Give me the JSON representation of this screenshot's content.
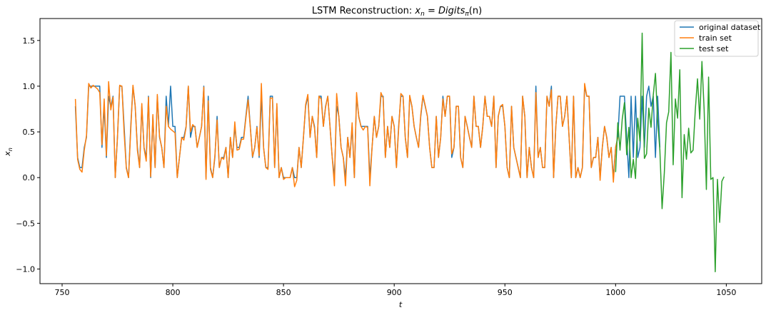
{
  "chart_data": {
    "type": "line",
    "title": {
      "prefix": "LSTM Reconstruction: ",
      "var": "x",
      "sub": "n",
      "eq": " = ",
      "func": "Digits",
      "funcsub": "π",
      "arg": "(n)"
    },
    "xlabel": "t",
    "ylabel": {
      "var": "x",
      "sub": "n"
    },
    "xlim": [
      740,
      1066
    ],
    "ylim": [
      -1.16,
      1.74
    ],
    "xticks": [
      750,
      800,
      850,
      900,
      950,
      1000,
      1050
    ],
    "yticks": [
      -1.0,
      -0.5,
      0.0,
      0.5,
      1.0,
      1.5
    ],
    "ytick_labels": [
      "−1.0",
      "−0.5",
      "0.0",
      "0.5",
      "1.0",
      "1.5"
    ],
    "grid": false,
    "legend_position": "top-right",
    "series": [
      {
        "name": "original dataset",
        "color": "#1f77b4",
        "x_start": 756,
        "y": [
          0.78,
          0.22,
          0.11,
          0.11,
          0.33,
          0.44,
          1.0,
          1.0,
          1.0,
          1.0,
          1.0,
          1.0,
          0.33,
          0.78,
          0.22,
          0.89,
          0.78,
          0.89,
          0.0,
          0.44,
          1.0,
          1.0,
          0.56,
          0.11,
          0.0,
          0.56,
          1.0,
          0.78,
          0.33,
          0.11,
          0.78,
          0.33,
          0.22,
          0.89,
          0.0,
          0.67,
          0.11,
          0.89,
          0.44,
          0.33,
          0.11,
          0.89,
          0.56,
          1.0,
          0.56,
          0.56,
          0.0,
          0.22,
          0.44,
          0.44,
          0.56,
          1.0,
          0.44,
          0.56,
          0.56,
          0.33,
          0.44,
          0.56,
          1.0,
          0.0,
          0.89,
          0.11,
          0.0,
          0.22,
          0.67,
          0.11,
          0.22,
          0.22,
          0.33,
          0.0,
          0.44,
          0.22,
          0.56,
          0.33,
          0.33,
          0.44,
          0.44,
          0.67,
          0.89,
          0.56,
          0.22,
          0.33,
          0.56,
          0.22,
          0.89,
          0.33,
          0.11,
          0.11,
          0.89,
          0.89,
          0.11,
          0.78,
          0.0,
          0.11,
          0.0,
          0.0,
          0.0,
          0.0,
          0.11,
          0.0,
          0.0,
          0.33,
          0.11,
          0.44,
          0.78,
          0.89,
          0.44,
          0.67,
          0.56,
          0.22,
          0.89,
          0.89,
          0.56,
          0.78,
          0.89,
          0.56,
          0.22,
          0.0,
          0.78,
          0.67,
          0.33,
          0.22,
          0.0,
          0.44,
          0.22,
          0.56,
          0.0,
          0.89,
          0.67,
          0.56,
          0.56,
          0.56,
          0.56,
          0.0,
          0.33,
          0.67,
          0.44,
          0.56,
          0.89,
          0.89,
          0.22,
          0.56,
          0.33,
          0.67,
          0.56,
          0.11,
          0.56,
          0.89,
          0.89,
          0.44,
          0.22,
          0.89,
          0.78,
          0.56,
          0.44,
          0.33,
          0.67,
          0.89,
          0.78,
          0.67,
          0.33,
          0.11,
          0.11,
          0.67,
          0.22,
          0.44,
          0.89,
          0.67,
          0.89,
          0.89,
          0.22,
          0.33,
          0.78,
          0.78,
          0.22,
          0.11,
          0.67,
          0.56,
          0.44,
          0.33,
          0.89,
          0.56,
          0.56,
          0.33,
          0.56,
          0.89,
          0.67,
          0.67,
          0.56,
          0.89,
          0.11,
          0.67,
          0.78,
          0.78,
          0.56,
          0.11,
          0.0,
          0.78,
          0.33,
          0.22,
          0.11,
          0.0,
          0.89,
          0.67,
          0.0,
          0.33,
          0.11,
          0.0,
          1.0,
          0.22,
          0.33,
          0.11,
          0.11,
          0.89,
          0.78,
          1.0,
          0.0,
          0.56,
          0.89,
          0.89,
          0.56,
          0.67,
          0.89,
          0.44,
          0.0,
          0.89,
          0.0,
          0.11,
          0.0,
          0.11,
          1.0,
          0.89,
          0.89,
          0.11,
          0.22,
          0.22,
          0.44,
          0.0,
          0.33,
          0.56,
          0.44,
          0.22,
          0.33,
          0.0,
          0.33,
          0.44,
          0.89,
          0.89,
          0.89,
          0.44,
          0.0,
          0.89,
          0.22,
          0.89,
          0.22,
          0.33,
          0.89,
          0.33,
          0.89,
          1.0,
          0.78,
          0.89,
          0.22,
          0.89,
          0.33
        ],
        "y_sample_note": ""
      },
      {
        "name": "train set",
        "color": "#ff7f0e",
        "x_start": 756,
        "y": [
          0.86,
          0.2,
          0.09,
          0.06,
          0.3,
          0.46,
          1.03,
          0.98,
          1.01,
          0.99,
          0.97,
          0.93,
          0.36,
          0.86,
          0.24,
          1.05,
          0.74,
          0.88,
          0.0,
          0.44,
          1.01,
          1.0,
          0.49,
          0.1,
          0.0,
          0.52,
          1.01,
          0.79,
          0.3,
          0.11,
          0.81,
          0.32,
          0.18,
          0.88,
          0.01,
          0.69,
          0.11,
          0.91,
          0.45,
          0.33,
          0.11,
          0.78,
          0.56,
          0.53,
          0.51,
          0.49,
          0.0,
          0.22,
          0.44,
          0.41,
          0.55,
          1.0,
          0.5,
          0.58,
          0.55,
          0.33,
          0.44,
          0.56,
          0.99,
          -0.02,
          0.84,
          0.09,
          0.0,
          0.24,
          0.63,
          0.11,
          0.22,
          0.2,
          0.33,
          0.0,
          0.44,
          0.22,
          0.61,
          0.3,
          0.31,
          0.42,
          0.42,
          0.65,
          0.85,
          0.55,
          0.23,
          0.33,
          0.55,
          0.24,
          1.03,
          0.33,
          0.11,
          0.09,
          0.87,
          0.87,
          0.11,
          0.81,
          0.0,
          0.11,
          -0.02,
          0.0,
          0.0,
          0.0,
          0.11,
          -0.1,
          -0.03,
          0.33,
          0.11,
          0.44,
          0.8,
          0.91,
          0.44,
          0.67,
          0.54,
          0.22,
          0.89,
          0.86,
          0.56,
          0.77,
          0.89,
          0.56,
          0.22,
          -0.09,
          0.92,
          0.66,
          0.33,
          0.22,
          -0.09,
          0.44,
          0.22,
          0.6,
          0.0,
          0.93,
          0.66,
          0.56,
          0.52,
          0.56,
          0.55,
          -0.09,
          0.33,
          0.67,
          0.44,
          0.56,
          0.93,
          0.87,
          0.22,
          0.56,
          0.33,
          0.67,
          0.56,
          0.11,
          0.53,
          0.92,
          0.89,
          0.44,
          0.22,
          0.9,
          0.78,
          0.56,
          0.44,
          0.33,
          0.69,
          0.9,
          0.79,
          0.67,
          0.33,
          0.11,
          0.11,
          0.67,
          0.22,
          0.44,
          0.86,
          0.67,
          0.89,
          0.89,
          0.26,
          0.33,
          0.78,
          0.78,
          0.22,
          0.11,
          0.67,
          0.56,
          0.44,
          0.33,
          0.89,
          0.56,
          0.56,
          0.33,
          0.56,
          0.89,
          0.67,
          0.67,
          0.56,
          0.89,
          0.11,
          0.67,
          0.78,
          0.8,
          0.56,
          0.11,
          0.0,
          0.78,
          0.33,
          0.22,
          0.11,
          0.0,
          0.89,
          0.67,
          0.0,
          0.33,
          0.11,
          0.0,
          0.93,
          0.22,
          0.33,
          0.11,
          0.11,
          0.89,
          0.78,
          0.96,
          0.0,
          0.56,
          0.89,
          0.89,
          0.56,
          0.67,
          0.89,
          0.44,
          0.0,
          0.89,
          0.0,
          0.11,
          0.0,
          0.11,
          1.03,
          0.89,
          0.89,
          0.11,
          0.22,
          0.22,
          0.44,
          -0.03,
          0.33,
          0.56,
          0.44,
          0.22,
          0.33,
          -0.05,
          0.33,
          0.44
        ]
      },
      {
        "name": "test set",
        "color": "#2ca02c",
        "x_start": 1000,
        "y": [
          0.06,
          0.6,
          0.3,
          0.64,
          0.82,
          0.25,
          0.55,
          0.0,
          0.2,
          -0.01,
          0.65,
          0.4,
          1.58,
          0.21,
          0.26,
          0.76,
          0.55,
          0.9,
          1.14,
          0.62,
          0.3,
          -0.34,
          0.05,
          0.6,
          0.72,
          1.37,
          0.14,
          0.86,
          0.65,
          1.18,
          -0.22,
          0.47,
          0.2,
          0.54,
          0.27,
          0.3,
          0.74,
          1.08,
          0.64,
          1.27,
          0.74,
          -0.13,
          1.1,
          -0.02,
          0.0,
          -1.03,
          -0.02,
          -0.49,
          -0.04,
          0.01
        ]
      }
    ]
  }
}
